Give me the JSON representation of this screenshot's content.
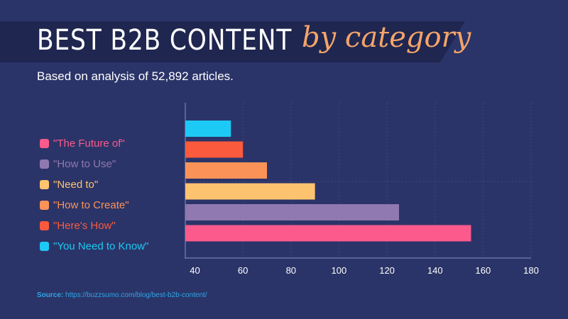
{
  "header": {
    "title": "BEST B2B CONTENT",
    "title_script": "by category",
    "subtitle": "Based on analysis of 52,892 articles."
  },
  "source": {
    "label": "Source:",
    "url": "https://buzzsumo.com/blog/best-b2b-content/"
  },
  "colors": {
    "background": "#2b3468",
    "banner": "#1f2650",
    "accent": "#f5a469"
  },
  "chart_data": {
    "type": "bar",
    "orientation": "horizontal",
    "categories": [
      "\"You Need to Know\"",
      "\"Here's How\"",
      "\"How to Create\"",
      "\"Need to\"",
      "\"How to Use\"",
      "\"The Future of\""
    ],
    "values": [
      55,
      60,
      70,
      90,
      125,
      155
    ],
    "colors": [
      "#1ccaf5",
      "#fb5a3c",
      "#fb9358",
      "#fdc36f",
      "#9079b0",
      "#fc5a8d"
    ],
    "xlim": [
      36,
      180
    ],
    "xticks": [
      40,
      60,
      80,
      100,
      120,
      140,
      160,
      180
    ],
    "grid": true,
    "legend": {
      "position": "left",
      "items": [
        {
          "label": "\"The Future of\"",
          "color": "#fc5a8d"
        },
        {
          "label": "\"How to Use\"",
          "color": "#9079b0"
        },
        {
          "label": "\"Need to\"",
          "color": "#fdc36f"
        },
        {
          "label": "\"How to Create\"",
          "color": "#fb9358"
        },
        {
          "label": "\"Here's How\"",
          "color": "#fb5a3c"
        },
        {
          "label": "\"You Need to Know\"",
          "color": "#1ccaf5"
        }
      ]
    }
  }
}
